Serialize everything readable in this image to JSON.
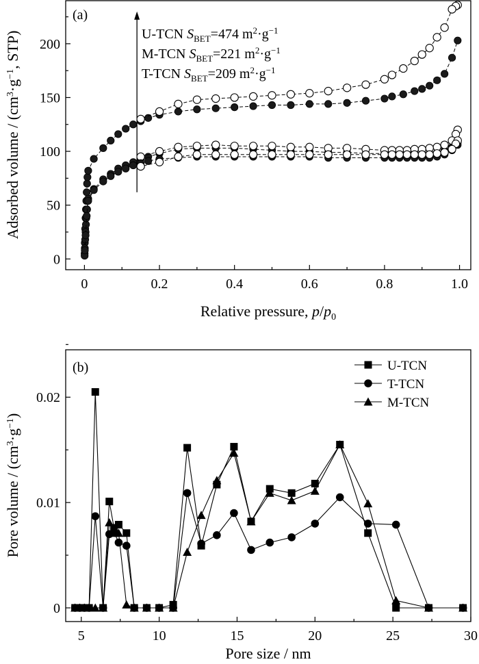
{
  "chart_data": [
    {
      "type": "scatter",
      "panel_label": "(a)",
      "xlabel": "Relative pressure, p/p0",
      "ylabel": "Adsorbed volume / (cm3·g−1, STP)",
      "xlim": [
        -0.05,
        1.03
      ],
      "ylim": [
        -10,
        240
      ],
      "xticks": [
        "0",
        "0.2",
        "0.4",
        "0.6",
        "0.8",
        "1.0"
      ],
      "yticks": [
        "0",
        "50",
        "100",
        "150",
        "200"
      ],
      "annotations": [
        {
          "sample": "U-TCN",
          "S": "S",
          "sub": "BET",
          "value": "=474 m",
          "sup": "2",
          "unit": "·g",
          "unit_sup": "−1"
        },
        {
          "sample": "M-TCN",
          "S": "S",
          "sub": "BET",
          "value": "=221 m",
          "sup": "2",
          "unit": "·g",
          "unit_sup": "−1"
        },
        {
          "sample": "T-TCN",
          "S": "S",
          "sub": "BET",
          "value": "=209 m",
          "sup": "2",
          "unit": "·g",
          "unit_sup": "−1"
        }
      ],
      "arrow": {
        "x": 0.14,
        "y_from": 62,
        "y_to": 230
      },
      "series": [
        {
          "marker": "filled-circle",
          "x": [
            0.0005,
            0.001,
            0.002,
            0.003,
            0.004,
            0.005,
            0.006,
            0.007,
            0.008,
            0.01,
            0.025,
            0.05,
            0.07,
            0.09,
            0.11,
            0.13,
            0.15,
            0.17,
            0.2,
            0.25,
            0.3,
            0.35,
            0.4,
            0.45,
            0.5,
            0.55,
            0.6,
            0.65,
            0.7,
            0.75,
            0.8,
            0.82,
            0.85,
            0.88,
            0.9,
            0.92,
            0.94,
            0.96,
            0.98,
            0.995
          ],
          "y": [
            5,
            15,
            28,
            38,
            46,
            54,
            62,
            70,
            76,
            82,
            93,
            103,
            110,
            116,
            121,
            125,
            128,
            131,
            134,
            137,
            139,
            140,
            141,
            142,
            143,
            143,
            144,
            144,
            145,
            147,
            149,
            151,
            153,
            156,
            158,
            161,
            166,
            172,
            187,
            203
          ]
        },
        {
          "marker": "open-circle",
          "x": [
            0.995,
            0.99,
            0.98,
            0.96,
            0.94,
            0.92,
            0.9,
            0.88,
            0.85,
            0.82,
            0.8,
            0.75,
            0.7,
            0.65,
            0.6,
            0.55,
            0.5,
            0.45,
            0.4,
            0.35,
            0.3,
            0.25,
            0.2,
            0.15
          ],
          "y": [
            236,
            235,
            232,
            215,
            206,
            196,
            190,
            184,
            177,
            171,
            167,
            162,
            159,
            156,
            154,
            153,
            152,
            151,
            150,
            149,
            148,
            144,
            137,
            130
          ]
        },
        {
          "marker": "filled-circle",
          "x": [
            0.0005,
            0.001,
            0.002,
            0.003,
            0.004,
            0.005,
            0.007,
            0.01,
            0.025,
            0.05,
            0.07,
            0.09,
            0.11,
            0.13,
            0.15,
            0.17,
            0.2,
            0.25,
            0.3,
            0.35,
            0.4,
            0.45,
            0.5,
            0.55,
            0.6,
            0.65,
            0.7,
            0.75,
            0.8,
            0.82,
            0.84,
            0.86,
            0.88,
            0.9,
            0.92,
            0.94,
            0.96,
            0.98,
            0.995
          ],
          "y": [
            3,
            10,
            18,
            25,
            32,
            38,
            46,
            56,
            65,
            74,
            79,
            84,
            87,
            90,
            93,
            95,
            98,
            102,
            103,
            103,
            103,
            102,
            101,
            100,
            100,
            99,
            99,
            98,
            98,
            98,
            98,
            98,
            98,
            98,
            98,
            99,
            101,
            104,
            108
          ]
        },
        {
          "marker": "open-circle",
          "x": [
            0.995,
            0.99,
            0.98,
            0.96,
            0.94,
            0.92,
            0.9,
            0.88,
            0.86,
            0.84,
            0.82,
            0.8,
            0.75,
            0.7,
            0.65,
            0.6,
            0.55,
            0.5,
            0.45,
            0.4,
            0.35,
            0.3,
            0.25,
            0.2,
            0.15
          ],
          "y": [
            120,
            116,
            110,
            106,
            104,
            103,
            102,
            102,
            101,
            101,
            101,
            101,
            102,
            103,
            103,
            104,
            104,
            105,
            105,
            105,
            106,
            105,
            104,
            100,
            95
          ]
        },
        {
          "marker": "filled-circle",
          "x": [
            0.001,
            0.003,
            0.006,
            0.01,
            0.025,
            0.05,
            0.07,
            0.09,
            0.11,
            0.13,
            0.15,
            0.17,
            0.2,
            0.25,
            0.3,
            0.35,
            0.4,
            0.45,
            0.5,
            0.55,
            0.6,
            0.65,
            0.7,
            0.75,
            0.8,
            0.82,
            0.84,
            0.86,
            0.88,
            0.9,
            0.92,
            0.94,
            0.96,
            0.98,
            0.995
          ],
          "y": [
            8,
            22,
            40,
            54,
            64,
            72,
            77,
            81,
            84,
            87,
            89,
            91,
            93,
            94,
            95,
            95,
            95,
            95,
            95,
            95,
            95,
            94,
            94,
            94,
            94,
            94,
            94,
            94,
            94,
            94,
            94,
            95,
            97,
            101,
            106
          ]
        },
        {
          "marker": "open-circle",
          "x": [
            0.995,
            0.99,
            0.98,
            0.96,
            0.94,
            0.92,
            0.9,
            0.88,
            0.86,
            0.84,
            0.82,
            0.8,
            0.75,
            0.7,
            0.65,
            0.6,
            0.55,
            0.5,
            0.45,
            0.4,
            0.35,
            0.3,
            0.25,
            0.2,
            0.15
          ],
          "y": [
            110,
            107,
            102,
            99,
            98,
            97,
            97,
            97,
            97,
            97,
            97,
            97,
            97,
            97,
            97,
            97,
            97,
            97,
            97,
            97,
            97,
            97,
            95,
            90,
            86
          ]
        }
      ]
    },
    {
      "type": "line",
      "panel_label": "(b)",
      "xlabel": "Pore size / nm",
      "ylabel": "Pore volume / (cm3·g−1)",
      "xlim": [
        4,
        30
      ],
      "ylim": [
        -0.0013,
        0.0245
      ],
      "xticks": [
        "5",
        "10",
        "15",
        "20",
        "25",
        "30"
      ],
      "yticks": [
        "0",
        "0.01",
        "0.02"
      ],
      "legend": {
        "position": "top-right",
        "entries": [
          "U-TCN",
          "T-TCN",
          "M-TCN"
        ]
      },
      "series": [
        {
          "name": "U-TCN",
          "marker": "square",
          "x": [
            4.6,
            4.9,
            5.2,
            5.5,
            5.9,
            6.4,
            6.8,
            7.1,
            7.4,
            7.9,
            8.4,
            9.2,
            10.0,
            10.9,
            11.8,
            12.7,
            13.7,
            14.8,
            15.9,
            17.1,
            18.5,
            20.0,
            21.6,
            23.4,
            25.2,
            27.3,
            29.5
          ],
          "y": [
            0,
            0,
            0,
            0,
            0.0205,
            0,
            0.0101,
            0.0076,
            0.0079,
            0.0071,
            0,
            0,
            0,
            0.0003,
            0.0152,
            0.0059,
            0.0117,
            0.0153,
            0.0082,
            0.0113,
            0.0109,
            0.0118,
            0.0155,
            0.0071,
            0,
            0,
            0
          ]
        },
        {
          "name": "T-TCN",
          "marker": "circle",
          "x": [
            4.6,
            4.9,
            5.2,
            5.5,
            5.9,
            6.4,
            6.8,
            7.1,
            7.4,
            7.9,
            8.4,
            9.2,
            10.0,
            10.9,
            11.8,
            12.7,
            13.7,
            14.8,
            15.9,
            17.1,
            18.5,
            20.0,
            21.6,
            23.4,
            25.2,
            27.3,
            29.5
          ],
          "y": [
            0,
            0,
            0,
            0,
            0.0087,
            0,
            0.007,
            0.0072,
            0.0062,
            0.0059,
            0,
            0,
            0,
            0,
            0.0109,
            0.0061,
            0.0069,
            0.009,
            0.0055,
            0.0062,
            0.0067,
            0.008,
            0.0105,
            0.008,
            0.0079,
            0,
            0
          ]
        },
        {
          "name": "M-TCN",
          "marker": "triangle",
          "x": [
            4.6,
            4.9,
            5.2,
            5.5,
            5.9,
            6.4,
            6.8,
            7.1,
            7.4,
            7.9,
            8.4,
            9.2,
            10.0,
            10.9,
            11.8,
            12.7,
            13.7,
            14.8,
            15.9,
            17.1,
            18.5,
            20.0,
            21.6,
            23.4,
            25.2,
            27.3,
            29.5
          ],
          "y": [
            0,
            0,
            0,
            0,
            0,
            0,
            0.0081,
            0.0071,
            0.0071,
            0.0003,
            0,
            0,
            0,
            0,
            0.0053,
            0.0088,
            0.0121,
            0.0147,
            0.0082,
            0.0109,
            0.0102,
            0.0111,
            0.0155,
            0.0099,
            0.0007,
            0,
            0
          ]
        }
      ]
    }
  ]
}
